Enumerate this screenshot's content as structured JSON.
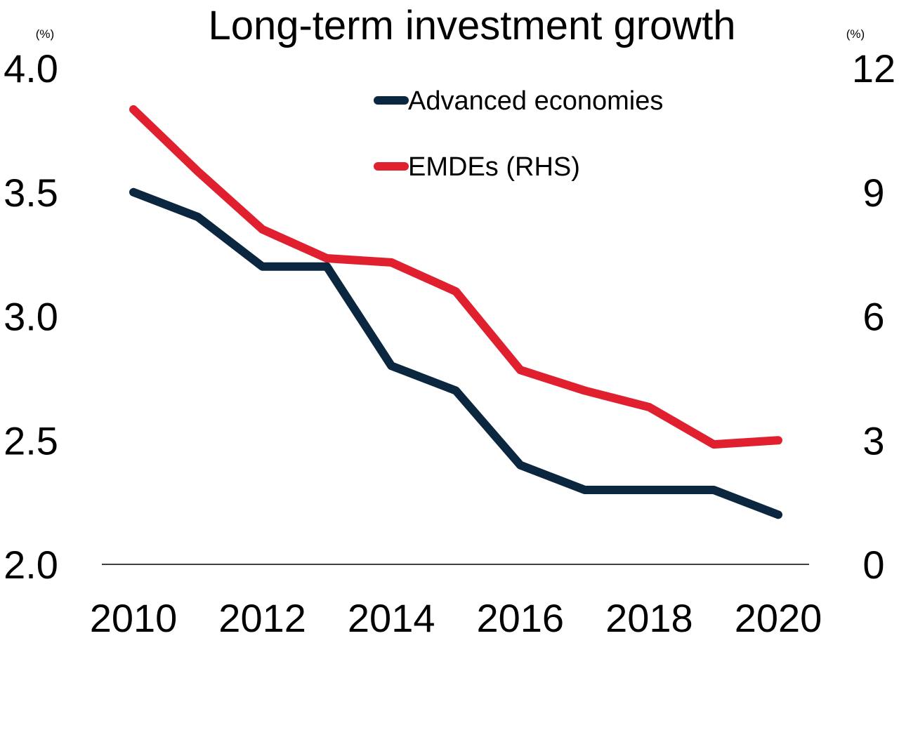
{
  "chart_data": {
    "type": "line",
    "title": "Long-term investment growth",
    "y_left_unit": "(%)",
    "y_right_unit": "(%)",
    "x": [
      2010,
      2011,
      2012,
      2013,
      2014,
      2015,
      2016,
      2017,
      2018,
      2019,
      2020
    ],
    "x_tick_labels": [
      "2010",
      "2012",
      "2014",
      "2016",
      "2018",
      "2020"
    ],
    "y_left_ticks": [
      "2.0",
      "2.5",
      "3.0",
      "3.5",
      "4.0"
    ],
    "y_right_ticks": [
      "0",
      "3",
      "6",
      "9",
      "12"
    ],
    "ylim_left": [
      2.0,
      4.0
    ],
    "ylim_right": [
      0,
      12
    ],
    "grid": false,
    "legend_position": "top-center",
    "series": [
      {
        "name": "Advanced economies",
        "axis": "left",
        "color": "#0b2740",
        "values": [
          3.5,
          3.4,
          3.2,
          3.2,
          2.8,
          2.7,
          2.4,
          2.3,
          2.3,
          2.3,
          2.2
        ]
      },
      {
        "name": "EMDEs (RHS)",
        "axis": "right",
        "color": "#e0202f",
        "values": [
          11.0,
          9.5,
          8.1,
          7.4,
          7.3,
          6.6,
          4.7,
          4.2,
          3.8,
          2.9,
          3.0
        ]
      }
    ]
  }
}
